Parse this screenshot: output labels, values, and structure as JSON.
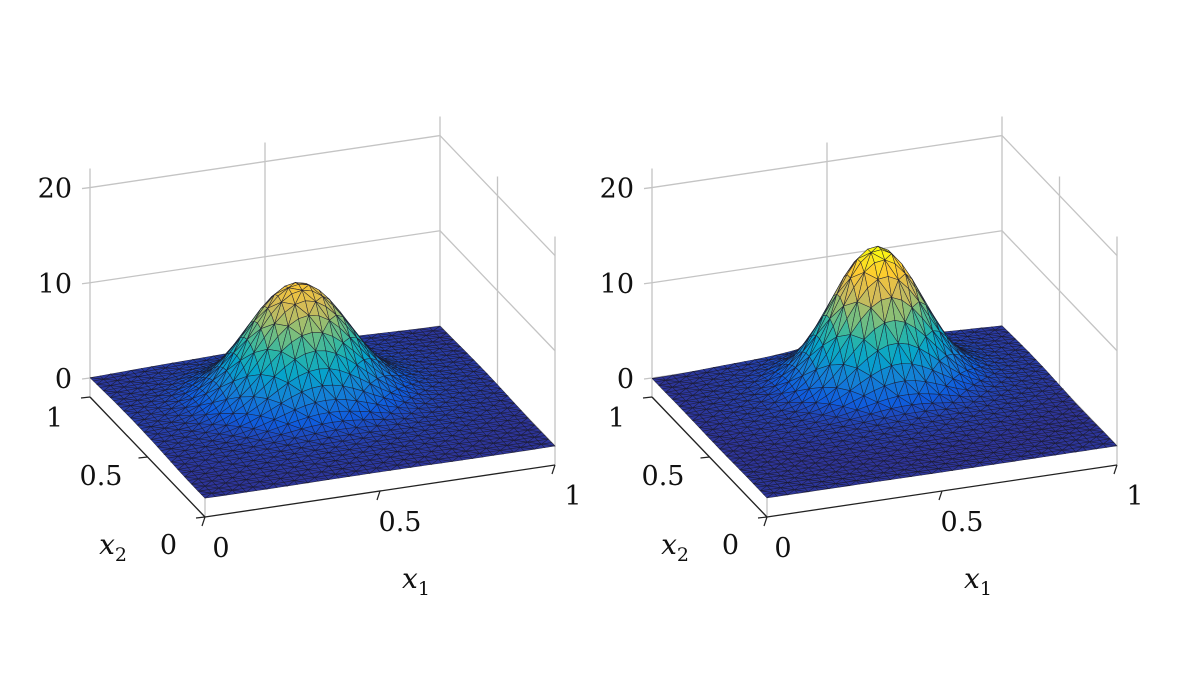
{
  "chart_data": [
    {
      "type": "surface",
      "xlabel": "x",
      "xlabel_sub": "1",
      "ylabel": "x",
      "ylabel_sub": "2",
      "x_ticks": [
        "0",
        "0.5",
        "1"
      ],
      "y_ticks": [
        "0",
        "0.5",
        "1"
      ],
      "z_ticks": [
        "0",
        "10",
        "20"
      ],
      "xlim": [
        0,
        1
      ],
      "ylim": [
        0,
        1
      ],
      "zlim": [
        -2,
        22
      ],
      "colormap": [
        "#352a87",
        "#0f5cdd",
        "#1481d6",
        "#06a4ca",
        "#2eb7a4",
        "#87bf77",
        "#d1bb59",
        "#fec832",
        "#f9fb0e"
      ],
      "mesh_color": "#1a1a2e",
      "surface": {
        "peak_x": 0.47,
        "peak_y": 0.62,
        "peak_z": 11.5,
        "spread": 0.15,
        "ripple": 0.6,
        "ripple_freq": 13
      }
    },
    {
      "type": "surface",
      "xlabel": "x",
      "xlabel_sub": "1",
      "ylabel": "x",
      "ylabel_sub": "2",
      "x_ticks": [
        "0",
        "0.5",
        "1"
      ],
      "y_ticks": [
        "0",
        "0.5",
        "1"
      ],
      "z_ticks": [
        "0",
        "10",
        "20"
      ],
      "xlim": [
        0,
        1
      ],
      "ylim": [
        0,
        1
      ],
      "zlim": [
        -2,
        22
      ],
      "colormap": [
        "#352a87",
        "#0f5cdd",
        "#1481d6",
        "#06a4ca",
        "#2eb7a4",
        "#87bf77",
        "#d1bb59",
        "#fec832",
        "#f9fb0e"
      ],
      "mesh_color": "#1a1a2e",
      "surface": {
        "peak_x": 0.55,
        "peak_y": 0.72,
        "peak_z": 13.8,
        "spread": 0.13,
        "ripple": 0.45,
        "ripple_freq": 15
      }
    }
  ]
}
